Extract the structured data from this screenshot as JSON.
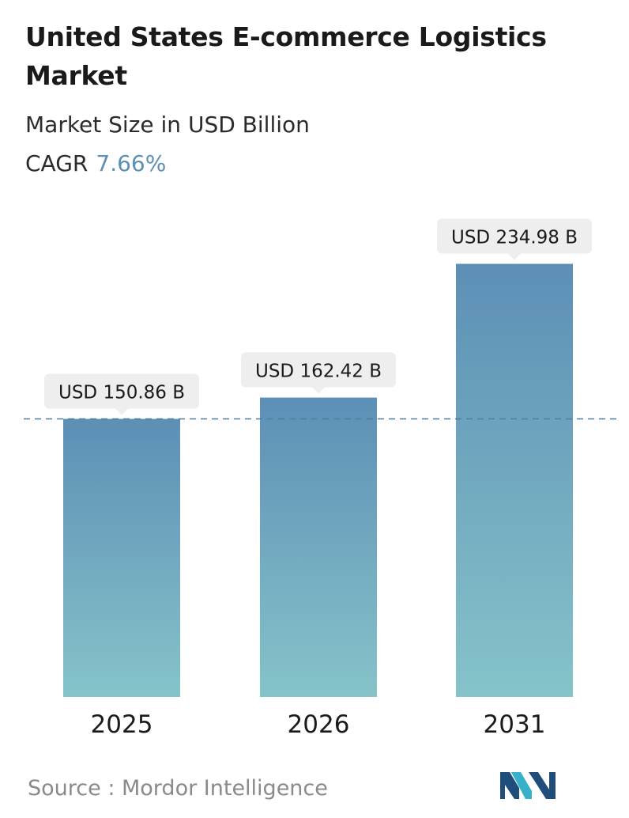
{
  "header": {
    "title": "United States E-commerce Logistics Market",
    "subtitle": "Market Size in USD Billion",
    "cagr_label": "CAGR",
    "cagr_value": "7.66%"
  },
  "colors": {
    "bar_top": "#5d8fb6",
    "bar_bottom": "#86c3c9",
    "dashed_line": "#4f7f9f",
    "label_bg": "#eeeeee",
    "cagr_value": "#5b8fb3"
  },
  "chart_data": {
    "type": "bar",
    "categories": [
      "2025",
      "2026",
      "2031"
    ],
    "values": [
      150.86,
      162.42,
      234.98
    ],
    "data_labels": [
      "USD 150.86 B",
      "USD 162.42 B",
      "USD 234.98 B"
    ],
    "title": "United States E-commerce Logistics Market",
    "subtitle": "Market Size in USD Billion",
    "xlabel": "",
    "ylabel": "",
    "reference_line": 150.86,
    "grid": false,
    "legend": "none"
  },
  "footer": {
    "source": "Source :  Mordor Intelligence"
  },
  "logo": {
    "icon": "mordor-intelligence-logo-icon",
    "colors": [
      "#1e4e79",
      "#37b0c9"
    ]
  }
}
